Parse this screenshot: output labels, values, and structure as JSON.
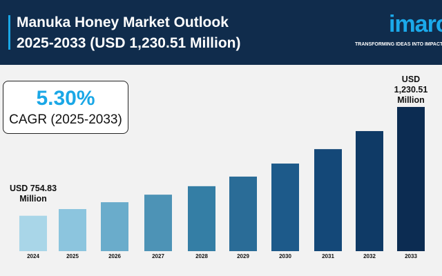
{
  "header": {
    "title_line1": "Manuka Honey Market Outlook",
    "title_line2": "2025-2033 (USD 1,230.51 Million)",
    "logo": "imarc",
    "tagline": "TRANSFORMING IDEAS INTO IMPACT"
  },
  "cagr": {
    "value": "5.30%",
    "label": "CAGR (2025-2033)"
  },
  "chart_data": {
    "type": "bar",
    "categories": [
      "2024",
      "2025",
      "2026",
      "2027",
      "2028",
      "2029",
      "2030",
      "2031",
      "2032",
      "2033"
    ],
    "values": [
      754.83,
      784,
      814,
      847,
      884,
      926,
      983,
      1046,
      1125,
      1230.51
    ],
    "colors": [
      "#a9d6e8",
      "#8cc5de",
      "#6aaccb",
      "#4d93b6",
      "#347ea5",
      "#2a6c97",
      "#1d5a8a",
      "#144878",
      "#0f3a66",
      "#0c2c52"
    ],
    "start_label_line1": "USD 754.83",
    "start_label_line2": "Million",
    "end_label_line1": "USD",
    "end_label_line2": "1,230.51",
    "end_label_line3": "Million",
    "title": "",
    "xlabel": "",
    "ylabel": ""
  }
}
